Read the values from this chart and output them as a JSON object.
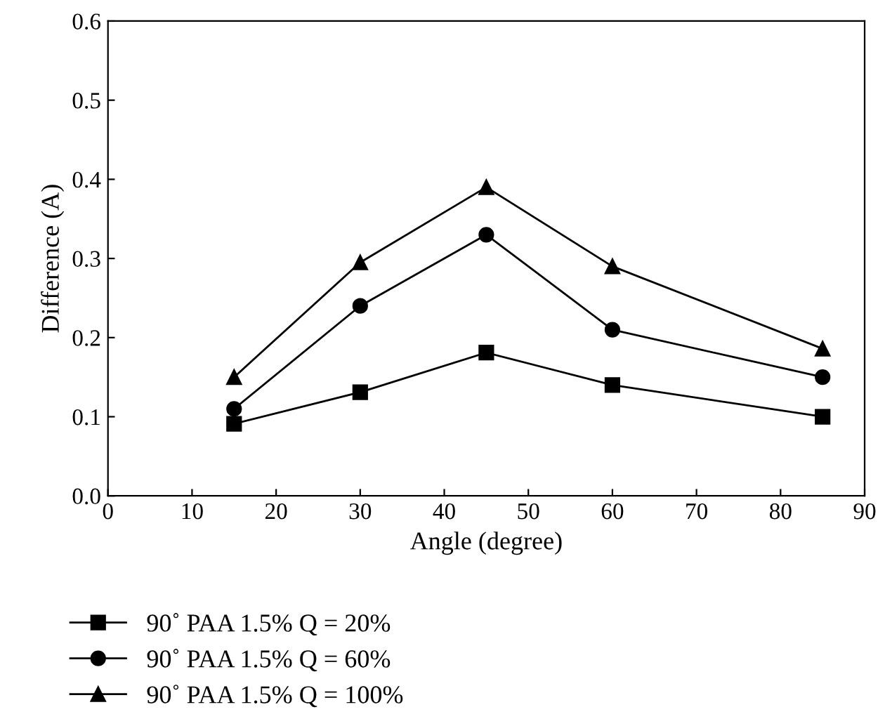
{
  "chart_data": {
    "type": "line",
    "xlabel": "Angle (degree)",
    "ylabel": "Difference (A)",
    "x": [
      15,
      30,
      45,
      60,
      85
    ],
    "series": [
      {
        "name": "90˚ PAA 1.5% Q = 20%",
        "color": "#000000",
        "marker": "square",
        "values": [
          0.091,
          0.131,
          0.181,
          0.14,
          0.1
        ]
      },
      {
        "name": "90˚ PAA 1.5% Q = 60%",
        "color": "#000000",
        "marker": "circle",
        "values": [
          0.11,
          0.24,
          0.33,
          0.21,
          0.15
        ]
      },
      {
        "name": "90˚ PAA 1.5% Q = 100%",
        "color": "#000000",
        "marker": "triangle",
        "values": [
          0.15,
          0.295,
          0.39,
          0.29,
          0.186
        ]
      }
    ],
    "xlim": [
      0,
      90
    ],
    "xticks": [
      0,
      10,
      20,
      30,
      40,
      50,
      60,
      70,
      80,
      90
    ],
    "ylim": [
      0,
      0.6
    ],
    "yticks": [
      {
        "value": 0,
        "label": "0.0"
      },
      {
        "value": 0.1,
        "label": "0.1"
      },
      {
        "value": 0.2,
        "label": "0.2"
      },
      {
        "value": 0.3,
        "label": "0.3"
      },
      {
        "value": 0.4,
        "label": "0.4"
      },
      {
        "value": 0.5,
        "label": "0.5"
      },
      {
        "value": 0.6,
        "label": "0.6"
      }
    ],
    "grid": false,
    "legend": "bottom",
    "line_style": "solid"
  }
}
